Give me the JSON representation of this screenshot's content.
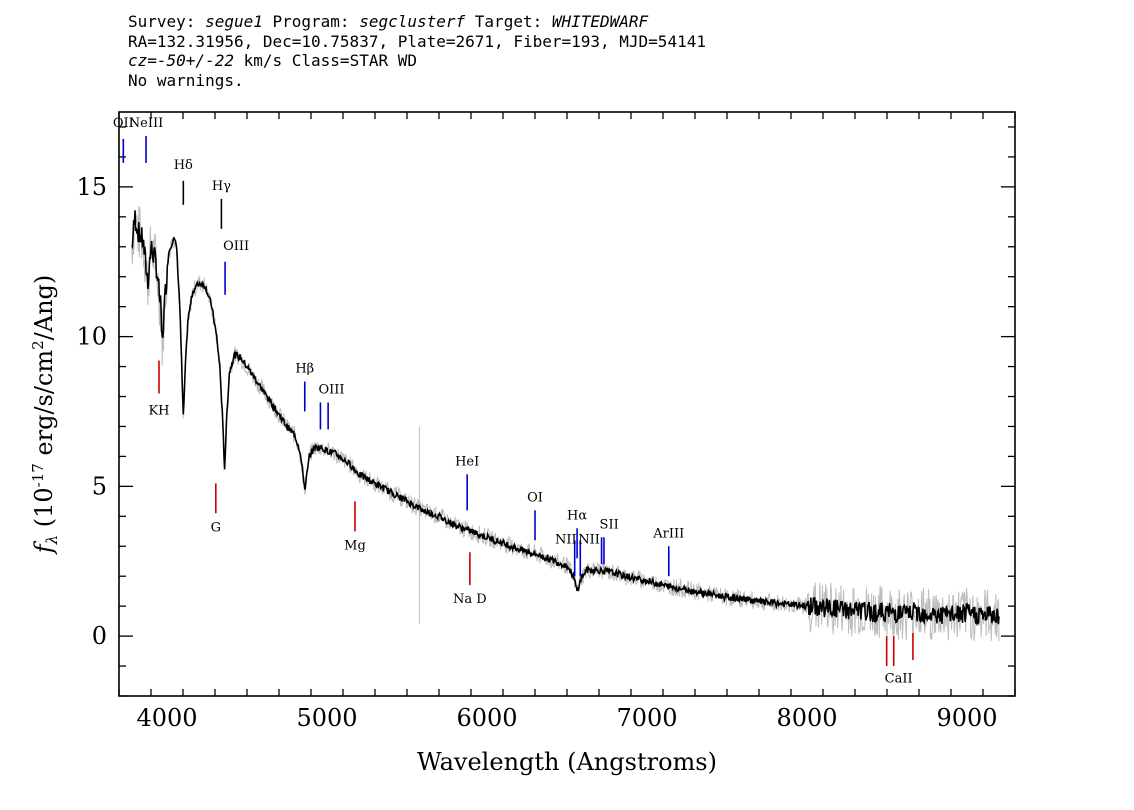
{
  "header": {
    "line1": [
      {
        "t": "Survey: ",
        "i": false
      },
      {
        "t": "segue1",
        "i": true
      },
      {
        "t": " Program: ",
        "i": false
      },
      {
        "t": "segclusterf",
        "i": true
      },
      {
        "t": " Target: ",
        "i": false
      },
      {
        "t": "WHITEDWARF",
        "i": true
      }
    ],
    "line2": "RA=132.31956, Dec=10.75837, Plate=2671, Fiber=193, MJD=54141",
    "line3": [
      {
        "t": "cz=-50+/-22",
        "i": true
      },
      {
        "t": " km/s Class=STAR WD",
        "i": false
      }
    ],
    "line4": "No warnings."
  },
  "chart_data": {
    "type": "line",
    "xlabel": "Wavelength (Angstroms)",
    "ylabel": "f_λ (10^-17 erg/s/cm^2/Ang)",
    "xlim": [
      3700,
      9300
    ],
    "ylim": [
      -2,
      17.5
    ],
    "xticks": [
      4000,
      5000,
      6000,
      7000,
      8000,
      9000
    ],
    "yticks": [
      0,
      5,
      10,
      15
    ],
    "grid": false,
    "series": [
      {
        "color": "#000000",
        "x": [
          3780,
          3800,
          3820,
          3850,
          3880,
          3900,
          3930,
          3960,
          3970,
          3990,
          4010,
          4040,
          4060,
          4080,
          4102,
          4115,
          4130,
          4160,
          4200,
          4240,
          4280,
          4310,
          4330,
          4345,
          4360,
          4375,
          4390,
          4420,
          4460,
          4500,
          4550,
          4600,
          4650,
          4700,
          4750,
          4800,
          4830,
          4850,
          4861,
          4875,
          4890,
          4920,
          4960,
          5000,
          5050,
          5100,
          5150,
          5200,
          5300,
          5400,
          5500,
          5600,
          5700,
          5800,
          5900,
          6000,
          6100,
          6200,
          6300,
          6400,
          6500,
          6540,
          6563,
          6590,
          6620,
          6700,
          6800,
          6900,
          7000,
          7100,
          7200,
          7300,
          7400,
          7500,
          7600,
          7700,
          7800,
          7900,
          8000,
          8100,
          8200,
          8300,
          8400,
          8500,
          8600,
          8700,
          8800,
          8900,
          9000,
          9100,
          9200
        ],
        "y": [
          13.0,
          14.0,
          13.5,
          13.2,
          11.8,
          13.0,
          12.5,
          11.0,
          9.8,
          11.5,
          12.8,
          13.3,
          13.0,
          11.0,
          7.3,
          9.0,
          10.5,
          11.5,
          11.8,
          11.7,
          11.0,
          10.0,
          9.0,
          7.5,
          5.6,
          7.5,
          8.8,
          9.4,
          9.3,
          9.0,
          8.6,
          8.2,
          7.8,
          7.4,
          7.0,
          6.7,
          6.2,
          5.4,
          4.9,
          5.4,
          6.0,
          6.3,
          6.3,
          6.2,
          6.1,
          5.9,
          5.7,
          5.4,
          5.1,
          4.8,
          4.5,
          4.2,
          4.0,
          3.7,
          3.5,
          3.3,
          3.1,
          2.9,
          2.75,
          2.55,
          2.35,
          2.0,
          1.5,
          1.95,
          2.2,
          2.2,
          2.1,
          1.95,
          1.85,
          1.7,
          1.6,
          1.5,
          1.4,
          1.3,
          1.25,
          1.15,
          1.1,
          1.05,
          1.0,
          0.95,
          0.9,
          0.85,
          0.8,
          0.8,
          0.75,
          0.8,
          0.7,
          0.7,
          0.75,
          0.7,
          0.7
        ]
      }
    ],
    "lines": [
      {
        "label": "OII",
        "x": 3727,
        "color": "#0000cc",
        "y0": 15.8,
        "y1": 16.6,
        "ly": 17.0,
        "anchor": "middle"
      },
      {
        "label": "NeIII",
        "x": 3869,
        "color": "#0000cc",
        "y0": 15.8,
        "y1": 16.7,
        "ly": 17.0,
        "anchor": "middle"
      },
      {
        "label": "Hδ",
        "x": 4102,
        "color": "#000000",
        "y0": 14.4,
        "y1": 15.2,
        "ly": 15.6,
        "anchor": "middle"
      },
      {
        "label": "Hγ",
        "x": 4340,
        "color": "#000000",
        "y0": 13.6,
        "y1": 14.6,
        "ly": 14.9,
        "anchor": "middle"
      },
      {
        "label": "OIII",
        "x": 4363,
        "color": "#0000cc",
        "y0": 11.4,
        "y1": 12.5,
        "ly": 12.9,
        "anchor": "start"
      },
      {
        "label": "KH",
        "x": 3950,
        "color": "#cc0000",
        "y0": 8.1,
        "y1": 9.2,
        "ly": 7.4,
        "anchor": "middle"
      },
      {
        "label": "Hβ",
        "x": 4861,
        "color": "#0000cc",
        "y0": 7.5,
        "y1": 8.5,
        "ly": 8.8,
        "anchor": "middle"
      },
      {
        "label": "OIII",
        "x": 4959,
        "color": "#0000cc",
        "y0": 6.9,
        "y1": 7.8,
        "ly": 8.1,
        "anchor": "start"
      },
      {
        "label": "",
        "x": 5007,
        "color": "#0000cc",
        "y0": 6.9,
        "y1": 7.8,
        "ly": 0,
        "anchor": "middle"
      },
      {
        "label": "G",
        "x": 4305,
        "color": "#cc0000",
        "y0": 4.1,
        "y1": 5.1,
        "ly": 3.5,
        "anchor": "middle"
      },
      {
        "label": "Mg",
        "x": 5175,
        "color": "#cc0000",
        "y0": 3.5,
        "y1": 4.5,
        "ly": 2.9,
        "anchor": "middle"
      },
      {
        "label": "HeI",
        "x": 5876,
        "color": "#0000cc",
        "y0": 4.2,
        "y1": 5.4,
        "ly": 5.7,
        "anchor": "middle"
      },
      {
        "label": "Na D",
        "x": 5893,
        "color": "#cc0000",
        "y0": 1.7,
        "y1": 2.8,
        "ly": 1.1,
        "anchor": "middle"
      },
      {
        "label": "OI",
        "x": 6300,
        "color": "#0000cc",
        "y0": 3.2,
        "y1": 4.2,
        "ly": 4.5,
        "anchor": "middle"
      },
      {
        "label": "NII",
        "x": 6548,
        "color": "#0000cc",
        "y0": 2.0,
        "y1": 3.2,
        "ly": 3.1,
        "anchor": "end"
      },
      {
        "label": "Hα",
        "x": 6563,
        "color": "#0000cc",
        "y0": 2.6,
        "y1": 3.6,
        "ly": 3.9,
        "anchor": "middle"
      },
      {
        "label": "NII",
        "x": 6583,
        "color": "#0000cc",
        "y0": 2.0,
        "y1": 3.2,
        "ly": 3.1,
        "anchor": "start"
      },
      {
        "label": "SII",
        "x": 6716,
        "color": "#0000cc",
        "y0": 2.4,
        "y1": 3.3,
        "ly": 3.6,
        "anchor": "start"
      },
      {
        "label": "",
        "x": 6731,
        "color": "#0000cc",
        "y0": 2.4,
        "y1": 3.3,
        "ly": 0,
        "anchor": "middle"
      },
      {
        "label": "ArIII",
        "x": 7136,
        "color": "#0000cc",
        "y0": 2.0,
        "y1": 3.0,
        "ly": 3.3,
        "anchor": "middle"
      },
      {
        "label": "CaII",
        "x": 8498,
        "color": "#cc0000",
        "y0": -1.0,
        "y1": 0.0,
        "ly": -1.55,
        "anchor": "start"
      },
      {
        "label": "",
        "x": 8542,
        "color": "#cc0000",
        "y0": -1.0,
        "y1": 0.0,
        "ly": 0,
        "anchor": "middle"
      },
      {
        "label": "",
        "x": 8662,
        "color": "#cc0000",
        "y0": -0.8,
        "y1": 0.1,
        "ly": 0,
        "anchor": "middle"
      }
    ]
  }
}
